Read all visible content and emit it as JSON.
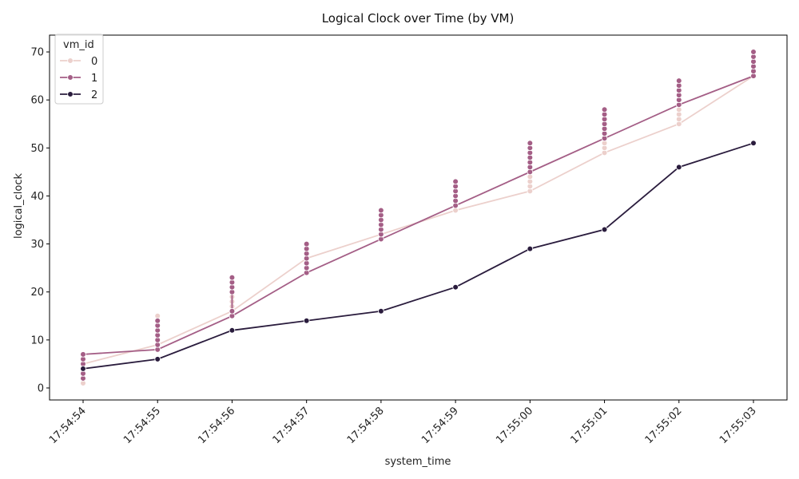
{
  "chart_data": {
    "type": "line",
    "title": "Logical Clock over Time (by VM)",
    "xlabel": "system_time",
    "ylabel": "logical_clock",
    "x_categories": [
      "17:54:54",
      "17:54:55",
      "17:54:56",
      "17:54:57",
      "17:54:58",
      "17:54:59",
      "17:55:00",
      "17:55:01",
      "17:55:02",
      "17:55:03"
    ],
    "yticks": [
      0,
      10,
      20,
      30,
      40,
      50,
      60,
      70
    ],
    "ylim": [
      -2.5,
      73.5
    ],
    "legend": {
      "title": "vm_id",
      "position": "top-left"
    },
    "series": [
      {
        "name": "0",
        "color": "#ecd0cc",
        "line": [
          5,
          9,
          16,
          27,
          32,
          37,
          41,
          49,
          55,
          65
        ],
        "points": [
          [
            1,
            2,
            3,
            4,
            5
          ],
          [
            8,
            9,
            10,
            11,
            12,
            13,
            14,
            15
          ],
          [
            16,
            17,
            18,
            19,
            20
          ],
          [
            24,
            25,
            26,
            27,
            28,
            29,
            30
          ],
          [
            31,
            32,
            33,
            34,
            35,
            36
          ],
          [
            37,
            38,
            39,
            40
          ],
          [
            41,
            42,
            43,
            44,
            45,
            46,
            47,
            48,
            49,
            50,
            51
          ],
          [
            49,
            50,
            51,
            52,
            53,
            54,
            55,
            56,
            57,
            58
          ],
          [
            55,
            56,
            57,
            58,
            59,
            60,
            61,
            62,
            63,
            64
          ],
          [
            65,
            66,
            67,
            68,
            69,
            70
          ]
        ]
      },
      {
        "name": "1",
        "color": "#a45e86",
        "line": [
          7,
          8,
          15,
          24,
          31,
          38,
          45,
          52,
          59,
          65
        ],
        "points": [
          [
            2,
            3,
            4,
            5,
            6,
            7
          ],
          [
            8,
            9,
            10,
            11,
            12,
            13,
            14
          ],
          [
            15,
            16,
            20,
            21,
            22,
            23
          ],
          [
            24,
            25,
            26,
            27,
            28,
            29,
            30
          ],
          [
            31,
            32,
            33,
            34,
            35,
            36,
            37
          ],
          [
            38,
            39,
            40,
            41,
            42,
            43
          ],
          [
            45,
            46,
            47,
            48,
            49,
            50,
            51
          ],
          [
            52,
            53,
            54,
            55,
            56,
            57,
            58
          ],
          [
            59,
            60,
            61,
            62,
            63,
            64
          ],
          [
            65,
            66,
            67,
            68,
            69,
            70
          ]
        ]
      },
      {
        "name": "2",
        "color": "#2a1c3d",
        "line": [
          4,
          6,
          12,
          14,
          16,
          21,
          29,
          33,
          46,
          51
        ],
        "points": [
          [
            4
          ],
          [
            6
          ],
          [
            12
          ],
          [
            14
          ],
          [
            16
          ],
          [
            21
          ],
          [
            29
          ],
          [
            33
          ],
          [
            46
          ],
          [
            51
          ]
        ]
      }
    ]
  }
}
